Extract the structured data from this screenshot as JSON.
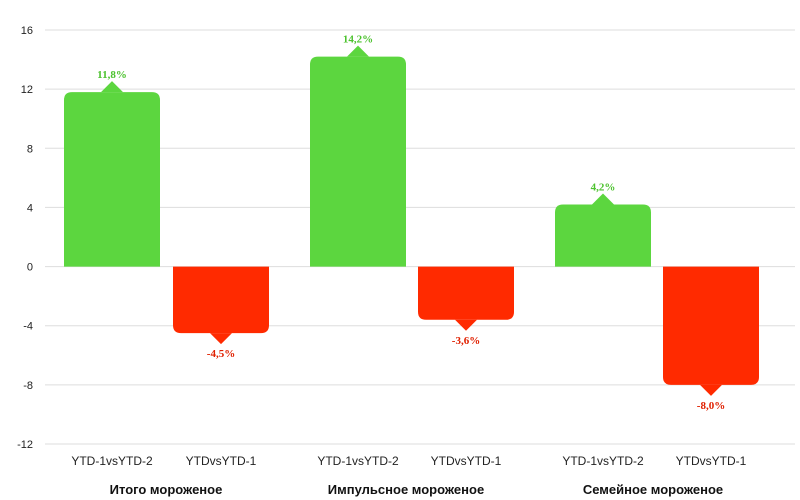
{
  "chart_data": {
    "type": "bar",
    "title": "",
    "xlabel": "",
    "ylabel": "",
    "ylim": [
      -12,
      16
    ],
    "yticks": [
      16,
      12,
      8,
      4,
      0,
      -4,
      -8,
      -12
    ],
    "grid": true,
    "groups": [
      {
        "name": "Итого мороженое",
        "bars": [
          {
            "category": "YTD-1vsYTD-2",
            "value": 11.8,
            "label": "11,8%"
          },
          {
            "category": "YTDvsYTD-1",
            "value": -4.5,
            "label": "-4,5%"
          }
        ]
      },
      {
        "name": "Импульсное мороженое",
        "bars": [
          {
            "category": "YTD-1vsYTD-2",
            "value": 14.2,
            "label": "14,2%"
          },
          {
            "category": "YTDvsYTD-1",
            "value": -3.6,
            "label": "-3,6%"
          }
        ]
      },
      {
        "name": "Семейное мороженое",
        "bars": [
          {
            "category": "YTD-1vsYTD-2",
            "value": 4.2,
            "label": "4,2%"
          },
          {
            "category": "YTDvsYTD-1",
            "value": -8.0,
            "label": "-8,0%"
          }
        ]
      }
    ],
    "colors": {
      "positive": "#5cd63f",
      "negative": "#ff2a00",
      "positive_label": "#4cc22e",
      "negative_label": "#e02000",
      "grid": "#dddddd"
    }
  }
}
